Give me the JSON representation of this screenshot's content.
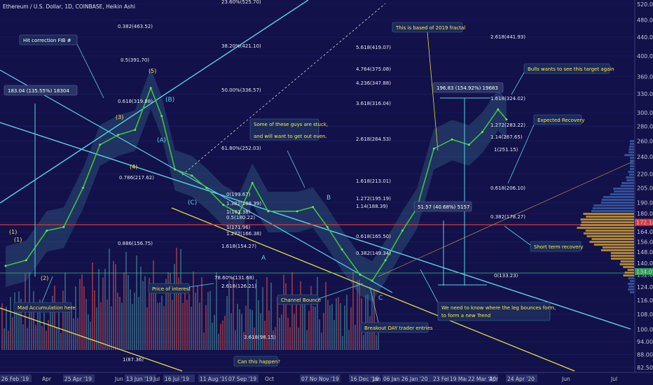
{
  "header": {
    "title": "Ethereum / U.S. Dollar, 1D, COINBASE, Heikin Ashi"
  },
  "price_badges": {
    "current": "172.10",
    "alt": "134.07"
  },
  "chart_data": {
    "type": "line",
    "title": "Ethereum / U.S. Dollar, 1D, COINBASE, Heikin Ashi",
    "yscale": "log",
    "ylim": [
      81,
      520
    ],
    "y_ticks": [
      82.5,
      88.0,
      94.0,
      100.0,
      108.0,
      116.0,
      124.0,
      132.0,
      140.0,
      148.0,
      156.0,
      164.0,
      172.0,
      180.0,
      190.0,
      205.0,
      220.0,
      240.0,
      260.0,
      280.0,
      300.0,
      330.0,
      360.0,
      400.0,
      440.0,
      480.0,
      520.0
    ],
    "x_ticks": [
      "26 Feb '19",
      "Apr",
      "25 Apr '19",
      "Jun",
      "13 Jun '19",
      "Jul",
      "16 Jul '19",
      "11 Aug '19",
      "07 Sep '19",
      "Oct",
      "07 Nov '19",
      "Nov '19",
      "16 Dec '19",
      "Jan",
      "06 Jan '20",
      "26 Jan '20",
      "23 Feb '20",
      "19 Mar '20",
      "22 Mar '20",
      "Apr",
      "24 Apr '20",
      "Jun",
      "Jul"
    ],
    "x_range": [
      "2019-02-26",
      "2020-07-15"
    ],
    "series": [
      {
        "x": [
          "2019-02-26",
          "2019-03-15",
          "2019-04-01",
          "2019-04-15",
          "2019-05-01",
          "2019-05-15",
          "2019-05-30",
          "2019-06-13",
          "2019-06-26",
          "2019-07-05",
          "2019-07-16",
          "2019-07-30",
          "2019-08-11",
          "2019-08-25",
          "2019-09-07",
          "2019-09-18",
          "2019-10-01",
          "2019-10-25",
          "2019-11-07",
          "2019-11-19",
          "2019-12-01",
          "2019-12-16",
          "2019-12-26",
          "2020-01-06",
          "2020-01-20",
          "2020-02-01",
          "2020-02-15",
          "2020-03-01",
          "2020-03-15",
          "2020-03-26",
          "2020-04-08",
          "2020-04-15"
        ],
        "y": [
          138,
          142,
          165,
          168,
          205,
          255,
          268,
          275,
          340,
          295,
          225,
          218,
          205,
          188,
          180,
          210,
          182,
          182,
          186,
          168,
          150,
          132,
          128,
          142,
          165,
          185,
          250,
          262,
          255,
          272,
          305,
          290
        ]
      }
    ],
    "volume_visible": true,
    "horizontal_lines": [
      172.1,
      134.07
    ],
    "fib_labels": [
      {
        "text": "23.60%(525.70)",
        "y": 525.7
      },
      {
        "text": "0.382(463.52)",
        "y": 463.52
      },
      {
        "text": "2.618(441.93)",
        "y": 441.93
      },
      {
        "text": "38.20%(421.10)",
        "y": 421.1
      },
      {
        "text": "5.618(419.07)",
        "y": 419.07
      },
      {
        "text": "0.5(391.70)",
        "y": 391.7
      },
      {
        "text": "4.764(375.08)",
        "y": 375.08
      },
      {
        "text": "4.236(347.88)",
        "y": 347.88
      },
      {
        "text": "50.00%(336.57)",
        "y": 336.57
      },
      {
        "text": "1.618(324.02)",
        "y": 324.02
      },
      {
        "text": "0.618(319.88)",
        "y": 319.88
      },
      {
        "text": "3.618(316.04)",
        "y": 316.04
      },
      {
        "text": "1.272(283.22)",
        "y": 283.22
      },
      {
        "text": "1.14(267.65)",
        "y": 267.65
      },
      {
        "text": "2.618(264.53)",
        "y": 264.53
      },
      {
        "text": "61.80%(252.03)",
        "y": 252.03
      },
      {
        "text": "1(251.15)",
        "y": 251.15
      },
      {
        "text": "0.786(217.62)",
        "y": 217.62
      },
      {
        "text": "1.618(213.01)",
        "y": 213.01
      },
      {
        "text": "0.618(206.10)",
        "y": 206.1
      },
      {
        "text": "0(199.67)",
        "y": 199.67
      },
      {
        "text": "1.272(195.19)",
        "y": 195.19
      },
      {
        "text": "1.382(188.39)",
        "y": 188.39
      },
      {
        "text": "1.14(188.39)",
        "y": 188.39
      },
      {
        "text": "1(181.38)",
        "y": 181.38
      },
      {
        "text": "0.5(180.22)",
        "y": 180.22
      },
      {
        "text": "0.382(178.27)",
        "y": 178.27
      },
      {
        "text": "1(171.96)",
        "y": 171.96
      },
      {
        "text": "1.272(166.38)",
        "y": 166.38
      },
      {
        "text": "0.618(165.50)",
        "y": 165.5
      },
      {
        "text": "0.886(156.75)",
        "y": 156.75
      },
      {
        "text": "1.618(154.27)",
        "y": 154.27
      },
      {
        "text": "0.382(149.34)",
        "y": 149.34
      },
      {
        "text": "0(133.23)",
        "y": 133.23
      },
      {
        "text": "78.60%(131.68)",
        "y": 131.68
      },
      {
        "text": "2.618(126.21)",
        "y": 126.21
      },
      {
        "text": "3.618(98.15)",
        "y": 98.15
      },
      {
        "text": "1(87.36)",
        "y": 87.36
      }
    ],
    "measurements": [
      {
        "text": "183.04 (135.55%) 18304"
      },
      {
        "text": "196.83 (154.92%) 19683"
      },
      {
        "text": "51.57 (40.68%) 5157"
      }
    ],
    "annotations": [
      "Hit correction FIB #",
      "Some of these guys are stuck,",
      "and will want to get out even.",
      "This is based of 2019 fractal",
      "Bulls wants to see this target again",
      "Expected Recovery",
      "Short term recovery",
      "Mad Accumulation here",
      "Price of interest",
      "Channel Bounce",
      "Breakout DAY trader entries",
      "We need to know where the leg bounces form,",
      "to form a new Trend",
      "Can this happen?"
    ],
    "wave_labels": [
      "(1)",
      "(3)",
      "(4)",
      "(5)",
      "(A)",
      "(B)",
      "(C)",
      "(1)",
      "(2)",
      "A",
      "B",
      "C"
    ]
  }
}
